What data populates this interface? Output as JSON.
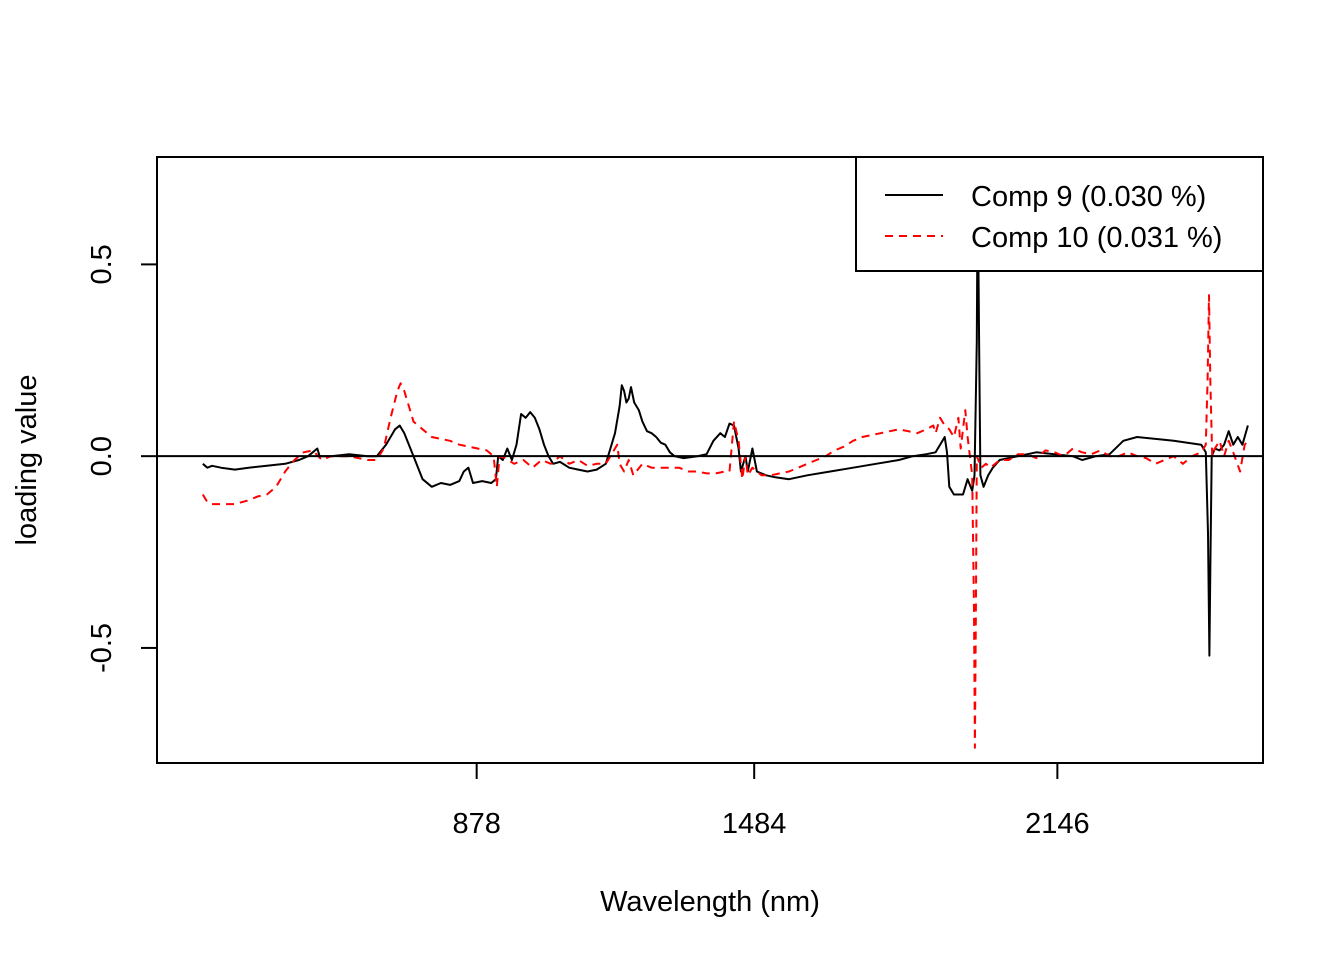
{
  "chart_data": {
    "type": "line",
    "title": "",
    "xlabel": "Wavelength (nm)",
    "ylabel": "loading value",
    "xlim": [
      180,
      2595
    ],
    "ylim": [
      -0.8,
      0.78
    ],
    "x_ticks": [
      878,
      1484,
      2146
    ],
    "x_tick_labels": [
      "878",
      "1484",
      "2146"
    ],
    "y_ticks": [
      -0.5,
      0.0,
      0.5
    ],
    "y_tick_labels": [
      "-0.5",
      "0.0",
      "0.5"
    ],
    "reference_line_y": 0,
    "grid": false,
    "legend_position": "top-right",
    "series": [
      {
        "name": "Comp 9 (0.030 %)",
        "color": "#000000",
        "dash": "solid",
        "points": [
          [
            280,
            -0.02
          ],
          [
            290,
            -0.03
          ],
          [
            300,
            -0.025
          ],
          [
            320,
            -0.03
          ],
          [
            350,
            -0.035
          ],
          [
            380,
            -0.03
          ],
          [
            420,
            -0.025
          ],
          [
            460,
            -0.02
          ],
          [
            490,
            -0.01
          ],
          [
            510,
            0.0
          ],
          [
            530,
            0.02
          ],
          [
            535,
            0.0
          ],
          [
            560,
            0.0
          ],
          [
            600,
            0.005
          ],
          [
            640,
            0.0
          ],
          [
            660,
            0.0
          ],
          [
            680,
            0.03
          ],
          [
            700,
            0.07
          ],
          [
            710,
            0.08
          ],
          [
            720,
            0.06
          ],
          [
            740,
            0.0
          ],
          [
            760,
            -0.06
          ],
          [
            780,
            -0.08
          ],
          [
            800,
            -0.07
          ],
          [
            820,
            -0.075
          ],
          [
            840,
            -0.065
          ],
          [
            850,
            -0.04
          ],
          [
            860,
            -0.03
          ],
          [
            870,
            -0.07
          ],
          [
            890,
            -0.065
          ],
          [
            910,
            -0.07
          ],
          [
            920,
            -0.06
          ],
          [
            925,
            0.0
          ],
          [
            935,
            -0.01
          ],
          [
            945,
            0.02
          ],
          [
            955,
            -0.01
          ],
          [
            965,
            0.03
          ],
          [
            975,
            0.11
          ],
          [
            985,
            0.1
          ],
          [
            995,
            0.115
          ],
          [
            1005,
            0.1
          ],
          [
            1015,
            0.07
          ],
          [
            1025,
            0.03
          ],
          [
            1035,
            0.0
          ],
          [
            1045,
            -0.02
          ],
          [
            1060,
            -0.015
          ],
          [
            1080,
            -0.03
          ],
          [
            1100,
            -0.035
          ],
          [
            1120,
            -0.04
          ],
          [
            1140,
            -0.035
          ],
          [
            1160,
            -0.02
          ],
          [
            1170,
            0.02
          ],
          [
            1180,
            0.06
          ],
          [
            1190,
            0.13
          ],
          [
            1195,
            0.185
          ],
          [
            1200,
            0.17
          ],
          [
            1205,
            0.14
          ],
          [
            1210,
            0.15
          ],
          [
            1215,
            0.18
          ],
          [
            1222,
            0.14
          ],
          [
            1232,
            0.12
          ],
          [
            1240,
            0.09
          ],
          [
            1250,
            0.065
          ],
          [
            1260,
            0.06
          ],
          [
            1270,
            0.05
          ],
          [
            1280,
            0.035
          ],
          [
            1290,
            0.03
          ],
          [
            1300,
            0.01
          ],
          [
            1310,
            0.0
          ],
          [
            1330,
            -0.005
          ],
          [
            1360,
            0.0
          ],
          [
            1380,
            0.005
          ],
          [
            1395,
            0.04
          ],
          [
            1410,
            0.06
          ],
          [
            1420,
            0.05
          ],
          [
            1430,
            0.085
          ],
          [
            1440,
            0.08
          ],
          [
            1450,
            0.02
          ],
          [
            1455,
            -0.04
          ],
          [
            1465,
            0.0
          ],
          [
            1470,
            -0.04
          ],
          [
            1480,
            0.02
          ],
          [
            1490,
            -0.04
          ],
          [
            1510,
            -0.05
          ],
          [
            1530,
            -0.055
          ],
          [
            1560,
            -0.06
          ],
          [
            1600,
            -0.05
          ],
          [
            1650,
            -0.04
          ],
          [
            1700,
            -0.03
          ],
          [
            1750,
            -0.02
          ],
          [
            1800,
            -0.01
          ],
          [
            1830,
            0.0
          ],
          [
            1860,
            0.005
          ],
          [
            1880,
            0.01
          ],
          [
            1890,
            0.03
          ],
          [
            1900,
            0.05
          ],
          [
            1905,
            0.01
          ],
          [
            1910,
            -0.08
          ],
          [
            1920,
            -0.1
          ],
          [
            1940,
            -0.1
          ],
          [
            1950,
            -0.06
          ],
          [
            1960,
            -0.09
          ],
          [
            1965,
            -0.05
          ],
          [
            1970,
            0.3
          ],
          [
            1972,
            0.72
          ],
          [
            1975,
            0.3
          ],
          [
            1978,
            -0.05
          ],
          [
            1985,
            -0.08
          ],
          [
            1995,
            -0.05
          ],
          [
            2005,
            -0.03
          ],
          [
            2020,
            -0.01
          ],
          [
            2060,
            0.0
          ],
          [
            2100,
            0.01
          ],
          [
            2140,
            0.005
          ],
          [
            2180,
            0.0
          ],
          [
            2200,
            -0.01
          ],
          [
            2230,
            0.0
          ],
          [
            2260,
            0.005
          ],
          [
            2290,
            0.04
          ],
          [
            2320,
            0.05
          ],
          [
            2360,
            0.045
          ],
          [
            2400,
            0.04
          ],
          [
            2430,
            0.035
          ],
          [
            2460,
            0.03
          ],
          [
            2470,
            0.01
          ],
          [
            2475,
            -0.2
          ],
          [
            2478,
            -0.52
          ],
          [
            2480,
            -0.3
          ],
          [
            2483,
            0.0
          ],
          [
            2490,
            0.02
          ],
          [
            2500,
            0.015
          ],
          [
            2510,
            0.03
          ],
          [
            2520,
            0.065
          ],
          [
            2530,
            0.03
          ],
          [
            2540,
            0.05
          ],
          [
            2550,
            0.03
          ],
          [
            2562,
            0.08
          ]
        ]
      },
      {
        "name": "Comp 10 (0.031 %)",
        "color": "#ff0000",
        "dash": "dashed",
        "points": [
          [
            280,
            -0.1
          ],
          [
            290,
            -0.12
          ],
          [
            300,
            -0.125
          ],
          [
            320,
            -0.125
          ],
          [
            350,
            -0.125
          ],
          [
            380,
            -0.115
          ],
          [
            400,
            -0.105
          ],
          [
            420,
            -0.1
          ],
          [
            440,
            -0.08
          ],
          [
            460,
            -0.04
          ],
          [
            480,
            -0.01
          ],
          [
            500,
            0.01
          ],
          [
            520,
            0.015
          ],
          [
            540,
            -0.01
          ],
          [
            560,
            0.0
          ],
          [
            600,
            0.0
          ],
          [
            640,
            -0.01
          ],
          [
            660,
            -0.01
          ],
          [
            675,
            0.02
          ],
          [
            690,
            0.1
          ],
          [
            705,
            0.17
          ],
          [
            712,
            0.19
          ],
          [
            720,
            0.17
          ],
          [
            740,
            0.09
          ],
          [
            760,
            0.07
          ],
          [
            780,
            0.05
          ],
          [
            800,
            0.045
          ],
          [
            820,
            0.04
          ],
          [
            840,
            0.03
          ],
          [
            860,
            0.025
          ],
          [
            880,
            0.02
          ],
          [
            900,
            0.015
          ],
          [
            915,
            0.0
          ],
          [
            922,
            -0.08
          ],
          [
            928,
            0.0
          ],
          [
            940,
            -0.005
          ],
          [
            960,
            -0.02
          ],
          [
            980,
            -0.01
          ],
          [
            1000,
            -0.03
          ],
          [
            1020,
            -0.01
          ],
          [
            1040,
            -0.02
          ],
          [
            1060,
            0.0
          ],
          [
            1080,
            -0.02
          ],
          [
            1100,
            -0.01
          ],
          [
            1120,
            -0.025
          ],
          [
            1140,
            -0.02
          ],
          [
            1160,
            -0.02
          ],
          [
            1170,
            0.0
          ],
          [
            1180,
            0.02
          ],
          [
            1185,
            0.03
          ],
          [
            1190,
            -0.02
          ],
          [
            1200,
            -0.04
          ],
          [
            1210,
            -0.01
          ],
          [
            1220,
            -0.05
          ],
          [
            1240,
            -0.02
          ],
          [
            1260,
            -0.03
          ],
          [
            1280,
            -0.03
          ],
          [
            1300,
            -0.03
          ],
          [
            1320,
            -0.03
          ],
          [
            1340,
            -0.04
          ],
          [
            1360,
            -0.04
          ],
          [
            1380,
            -0.045
          ],
          [
            1400,
            -0.045
          ],
          [
            1420,
            -0.04
          ],
          [
            1430,
            -0.04
          ],
          [
            1440,
            0.09
          ],
          [
            1450,
            0.04
          ],
          [
            1458,
            -0.06
          ],
          [
            1465,
            0.0
          ],
          [
            1470,
            -0.05
          ],
          [
            1480,
            -0.03
          ],
          [
            1500,
            -0.05
          ],
          [
            1520,
            -0.05
          ],
          [
            1540,
            -0.045
          ],
          [
            1560,
            -0.04
          ],
          [
            1580,
            -0.03
          ],
          [
            1600,
            -0.02
          ],
          [
            1620,
            -0.01
          ],
          [
            1640,
            0.0
          ],
          [
            1660,
            0.015
          ],
          [
            1680,
            0.025
          ],
          [
            1700,
            0.04
          ],
          [
            1720,
            0.05
          ],
          [
            1740,
            0.055
          ],
          [
            1760,
            0.06
          ],
          [
            1780,
            0.065
          ],
          [
            1800,
            0.07
          ],
          [
            1820,
            0.065
          ],
          [
            1840,
            0.06
          ],
          [
            1860,
            0.07
          ],
          [
            1875,
            0.08
          ],
          [
            1880,
            0.06
          ],
          [
            1890,
            0.1
          ],
          [
            1900,
            0.08
          ],
          [
            1910,
            0.07
          ],
          [
            1920,
            0.05
          ],
          [
            1930,
            0.1
          ],
          [
            1935,
            0.02
          ],
          [
            1945,
            0.12
          ],
          [
            1950,
            0.05
          ],
          [
            1955,
            0.0
          ],
          [
            1960,
            -0.05
          ],
          [
            1964,
            -0.4
          ],
          [
            1966,
            -0.76
          ],
          [
            1968,
            -0.4
          ],
          [
            1970,
            0.0
          ],
          [
            1980,
            -0.03
          ],
          [
            1990,
            -0.02
          ],
          [
            2000,
            -0.03
          ],
          [
            2020,
            -0.01
          ],
          [
            2040,
            -0.01
          ],
          [
            2060,
            0.005
          ],
          [
            2080,
            0.005
          ],
          [
            2100,
            -0.005
          ],
          [
            2120,
            0.015
          ],
          [
            2140,
            0.01
          ],
          [
            2160,
            0.0
          ],
          [
            2180,
            0.02
          ],
          [
            2200,
            0.01
          ],
          [
            2220,
            0.005
          ],
          [
            2240,
            0.015
          ],
          [
            2260,
            0.0
          ],
          [
            2280,
            0.0
          ],
          [
            2300,
            0.01
          ],
          [
            2320,
            0.0
          ],
          [
            2340,
            -0.005
          ],
          [
            2360,
            -0.02
          ],
          [
            2380,
            -0.01
          ],
          [
            2400,
            0.0
          ],
          [
            2420,
            -0.02
          ],
          [
            2440,
            0.0
          ],
          [
            2460,
            0.01
          ],
          [
            2470,
            0.03
          ],
          [
            2474,
            0.2
          ],
          [
            2477,
            0.42
          ],
          [
            2480,
            0.2
          ],
          [
            2484,
            0.0
          ],
          [
            2490,
            0.02
          ],
          [
            2500,
            0.04
          ],
          [
            2510,
            0.0
          ],
          [
            2520,
            0.04
          ],
          [
            2530,
            0.01
          ],
          [
            2545,
            -0.04
          ],
          [
            2555,
            0.03
          ],
          [
            2562,
            0.04
          ]
        ]
      }
    ]
  }
}
